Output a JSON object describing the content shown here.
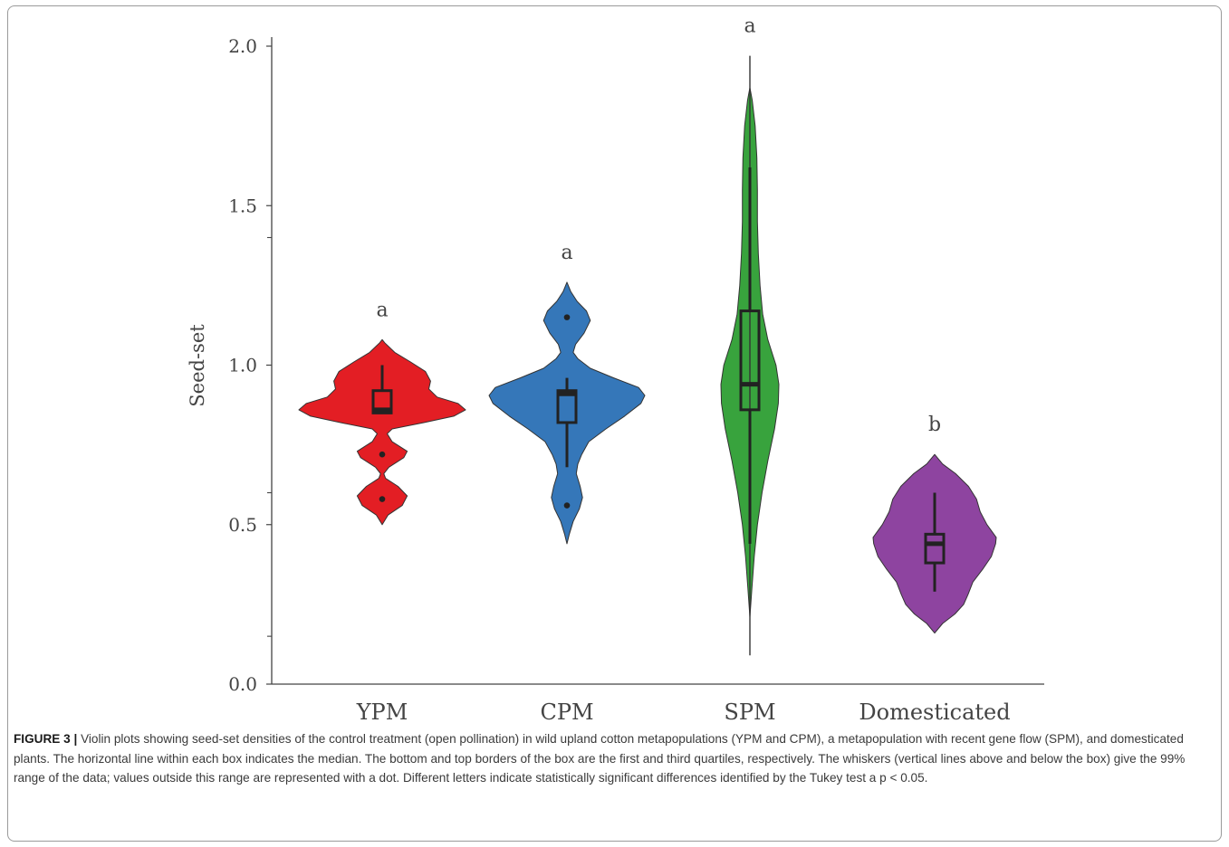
{
  "figure": {
    "label": "FIGURE 3 |",
    "caption": "Violin plots showing seed-set densities of the control treatment (open pollination) in wild upland cotton metapopulations (YPM and CPM), a metapopulation with recent gene flow (SPM), and domesticated plants. The horizontal line within each box indicates the median. The bottom and top borders of the box are the first and third quartiles, respectively. The whiskers (vertical lines above and below the box) give the 99% range of the data; values outside this range are represented with a dot. Different letters indicate statistically significant differences identified by the Tukey test a p < 0.05."
  },
  "chart_data": {
    "type": "violin",
    "title": "",
    "ylabel": "Seed-set",
    "xlabel": "",
    "ylim": [
      0.0,
      2.0
    ],
    "yticks": [
      0.0,
      0.5,
      1.0,
      1.5,
      2.0
    ],
    "ytick_labels": [
      "0.0",
      "0.5",
      "1.0",
      "1.5",
      "2.0"
    ],
    "minor_yticks": [
      0.15,
      0.6,
      1.4
    ],
    "grid": false,
    "legend": "none",
    "categories": [
      "YPM",
      "CPM",
      "SPM",
      "Domesticated"
    ],
    "series": [
      {
        "category": "YPM",
        "color": "#e31e24",
        "letter": "a",
        "box": {
          "q1": 0.85,
          "median": 0.86,
          "q3": 0.92,
          "whisker_low": 0.85,
          "whisker_high": 1.0
        },
        "outliers": [
          0.72,
          0.58
        ],
        "density": [
          [
            0.5,
            0.0
          ],
          [
            0.53,
            0.07
          ],
          [
            0.56,
            0.24
          ],
          [
            0.59,
            0.3
          ],
          [
            0.62,
            0.19
          ],
          [
            0.645,
            0.04
          ],
          [
            0.66,
            0.02
          ],
          [
            0.68,
            0.08
          ],
          [
            0.71,
            0.26
          ],
          [
            0.73,
            0.3
          ],
          [
            0.76,
            0.12
          ],
          [
            0.785,
            0.06
          ],
          [
            0.8,
            0.12
          ],
          [
            0.82,
            0.5
          ],
          [
            0.84,
            0.86
          ],
          [
            0.86,
            1.0
          ],
          [
            0.88,
            0.91
          ],
          [
            0.9,
            0.66
          ],
          [
            0.925,
            0.56
          ],
          [
            0.95,
            0.58
          ],
          [
            0.98,
            0.52
          ],
          [
            1.01,
            0.34
          ],
          [
            1.04,
            0.15
          ],
          [
            1.07,
            0.03
          ],
          [
            1.08,
            0.0
          ]
        ]
      },
      {
        "category": "CPM",
        "color": "#3577b9",
        "letter": "a",
        "box": {
          "q1": 0.82,
          "median": 0.91,
          "q3": 0.92,
          "whisker_low": 0.68,
          "whisker_high": 0.96
        },
        "outliers": [
          1.15,
          0.56
        ],
        "density": [
          [
            0.44,
            0.0
          ],
          [
            0.47,
            0.03
          ],
          [
            0.51,
            0.08
          ],
          [
            0.55,
            0.16
          ],
          [
            0.585,
            0.2
          ],
          [
            0.62,
            0.17
          ],
          [
            0.66,
            0.12
          ],
          [
            0.69,
            0.14
          ],
          [
            0.72,
            0.19
          ],
          [
            0.76,
            0.28
          ],
          [
            0.8,
            0.5
          ],
          [
            0.84,
            0.74
          ],
          [
            0.88,
            0.95
          ],
          [
            0.905,
            1.0
          ],
          [
            0.93,
            0.92
          ],
          [
            0.96,
            0.6
          ],
          [
            0.99,
            0.3
          ],
          [
            1.02,
            0.14
          ],
          [
            1.04,
            0.08
          ],
          [
            1.065,
            0.11
          ],
          [
            1.1,
            0.22
          ],
          [
            1.14,
            0.3
          ],
          [
            1.17,
            0.25
          ],
          [
            1.2,
            0.13
          ],
          [
            1.23,
            0.05
          ],
          [
            1.26,
            0.0
          ]
        ]
      },
      {
        "category": "SPM",
        "color": "#38a33d",
        "letter": "a",
        "box": {
          "q1": 0.86,
          "median": 0.94,
          "q3": 1.17,
          "whisker_low": 0.44,
          "whisker_high": 1.62
        },
        "outliers": [],
        "density": [
          [
            0.21,
            0.0
          ],
          [
            0.3,
            0.07
          ],
          [
            0.4,
            0.15
          ],
          [
            0.5,
            0.26
          ],
          [
            0.6,
            0.42
          ],
          [
            0.7,
            0.62
          ],
          [
            0.8,
            0.85
          ],
          [
            0.88,
            0.98
          ],
          [
            0.94,
            1.0
          ],
          [
            1.0,
            0.9
          ],
          [
            1.08,
            0.62
          ],
          [
            1.16,
            0.44
          ],
          [
            1.25,
            0.35
          ],
          [
            1.35,
            0.29
          ],
          [
            1.45,
            0.26
          ],
          [
            1.55,
            0.26
          ],
          [
            1.65,
            0.24
          ],
          [
            1.75,
            0.18
          ],
          [
            1.83,
            0.08
          ],
          [
            1.87,
            0.0
          ]
        ],
        "line_range": [
          0.09,
          1.97
        ]
      },
      {
        "category": "Domesticated",
        "color": "#8e44a0",
        "letter": "b",
        "box": {
          "q1": 0.38,
          "median": 0.44,
          "q3": 0.47,
          "whisker_low": 0.29,
          "whisker_high": 0.6
        },
        "outliers": [],
        "density": [
          [
            0.16,
            0.0
          ],
          [
            0.19,
            0.13
          ],
          [
            0.22,
            0.33
          ],
          [
            0.25,
            0.47
          ],
          [
            0.28,
            0.54
          ],
          [
            0.32,
            0.62
          ],
          [
            0.36,
            0.78
          ],
          [
            0.4,
            0.92
          ],
          [
            0.44,
            0.99
          ],
          [
            0.46,
            1.0
          ],
          [
            0.5,
            0.85
          ],
          [
            0.54,
            0.74
          ],
          [
            0.58,
            0.68
          ],
          [
            0.62,
            0.55
          ],
          [
            0.66,
            0.34
          ],
          [
            0.69,
            0.13
          ],
          [
            0.72,
            0.0
          ]
        ]
      }
    ]
  }
}
